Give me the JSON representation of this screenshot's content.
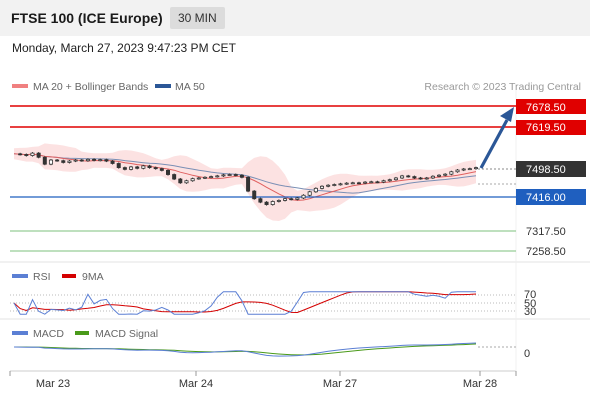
{
  "header": {
    "title": "FTSE 100 (ICE Europe)",
    "timeframe": "30 MIN"
  },
  "datetime": "Monday, March 27, 2023 9:47:23 PM CET",
  "source": "Research © 2023 Trading Central",
  "legend_main": [
    {
      "label": "MA 20 + Bollinger Bands",
      "color": "#f08080"
    },
    {
      "label": "MA 50",
      "color": "#2b5797"
    }
  ],
  "legend_rsi": [
    {
      "label": "RSI",
      "color": "#5b7fd4"
    },
    {
      "label": "9MA",
      "color": "#d40000"
    }
  ],
  "legend_macd": [
    {
      "label": "MACD",
      "color": "#5b7fd4"
    },
    {
      "label": "MACD Signal",
      "color": "#4a9a1a"
    }
  ],
  "levels": {
    "r2": "7678.50",
    "r1": "7619.50",
    "last": "7498.50",
    "pivot": "7416.00",
    "s1": "7317.50",
    "s2": "7258.50"
  },
  "rsi_ticks": [
    "70",
    "50",
    "30"
  ],
  "macd_ticks": [
    "0"
  ],
  "x_ticks": [
    "Mar 23",
    "Mar 24",
    "Mar 27",
    "Mar 28"
  ],
  "colors": {
    "resistance": "#e00000",
    "support": "#5fb35f",
    "pivot": "#1f5fbf",
    "last": "#333333",
    "arrow": "#2b5797",
    "bollinger": "#fbd6d6"
  },
  "chart_data": {
    "type": "candlestick",
    "x_ticks": [
      "Mar 23",
      "Mar 24",
      "Mar 27",
      "Mar 28"
    ],
    "price_series": [
      7540,
      7538,
      7535,
      7542,
      7530,
      7510,
      7522,
      7520,
      7515,
      7519,
      7522,
      7520,
      7524,
      7521,
      7523,
      7519,
      7512,
      7500,
      7495,
      7502,
      7498,
      7505,
      7500,
      7497,
      7492,
      7480,
      7467,
      7456,
      7462,
      7468,
      7470,
      7472,
      7474,
      7476,
      7479,
      7480,
      7478,
      7472,
      7432,
      7410,
      7400,
      7393,
      7402,
      7405,
      7410,
      7408,
      7412,
      7420,
      7430,
      7440,
      7446,
      7449,
      7451,
      7453,
      7455,
      7456,
      7455,
      7458,
      7459,
      7458,
      7462,
      7465,
      7470,
      7476,
      7474,
      7470,
      7468,
      7470,
      7475,
      7478,
      7481,
      7488,
      7493,
      7496,
      7497,
      7500
    ],
    "levels": [
      7678.5,
      7619.5,
      7498.5,
      7416.0,
      7317.5,
      7258.5
    ],
    "rsi_ticks": [
      70,
      50,
      30
    ],
    "macd_ticks": [
      0
    ]
  }
}
